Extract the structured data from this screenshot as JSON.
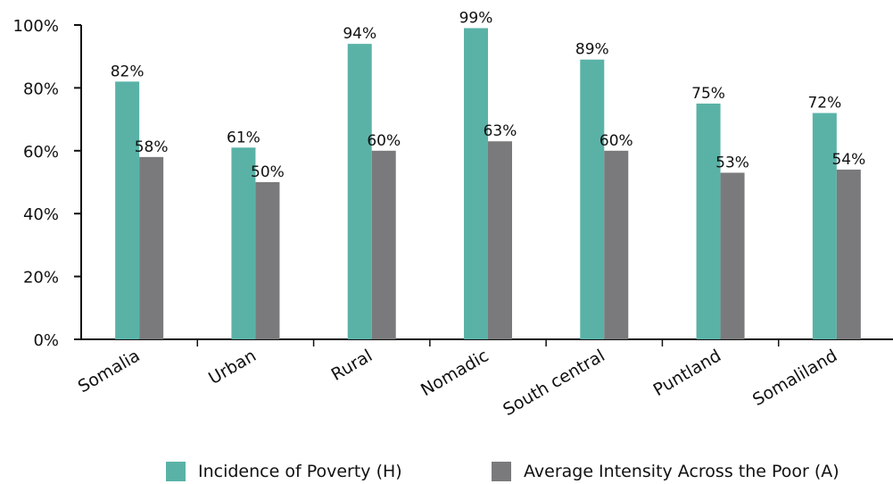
{
  "chart_data": {
    "type": "bar",
    "title": "",
    "xlabel": "",
    "ylabel": "",
    "categories": [
      "Somalia",
      "Urban",
      "Rural",
      "Nomadic",
      "South central",
      "Puntland",
      "Somaliland"
    ],
    "series": [
      {
        "name": "Incidence of Poverty (H)",
        "color": "#5ab2a7",
        "values": [
          82,
          61,
          94,
          99,
          89,
          75,
          72
        ],
        "labels": [
          "82%",
          "61%",
          "94%",
          "99%",
          "89%",
          "75%",
          "72%"
        ]
      },
      {
        "name": "Average Intensity Across the Poor (A)",
        "color": "#7a7a7c",
        "values": [
          58,
          50,
          60,
          63,
          60,
          53,
          54
        ],
        "labels": [
          "58%",
          "50%",
          "60%",
          "63%",
          "60%",
          "53%",
          "54%"
        ]
      }
    ],
    "ylim": [
      0,
      100
    ],
    "yticks": [
      "0%",
      "20%",
      "40%",
      "60%",
      "80%",
      "100%"
    ],
    "grid": false,
    "legend_position": "bottom"
  }
}
